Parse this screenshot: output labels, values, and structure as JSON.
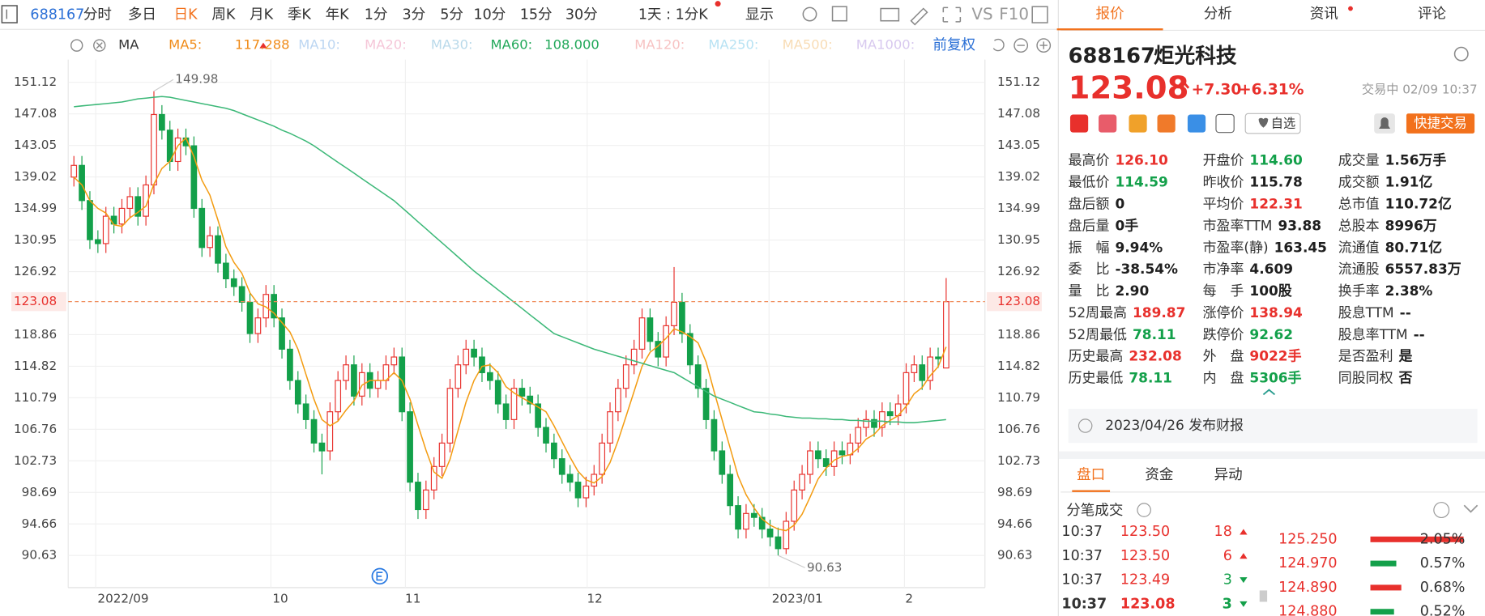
{
  "toolbar": {
    "code": "688167",
    "periods": [
      "分时",
      "多日",
      "日K",
      "周K",
      "月K",
      "季K",
      "年K",
      "1分",
      "3分",
      "5分",
      "10分",
      "15分",
      "30分"
    ],
    "active": 2,
    "range": "1天 : 1分K",
    "display": "显示",
    "vs": "VS",
    "f10": "F10"
  },
  "chart_data": {
    "type": "candlestick",
    "indicator": "MA",
    "adjust": "前复权",
    "ma_legend": [
      {
        "name": "MA5:",
        "value": "117.288",
        "color": "#f08c1a"
      },
      {
        "name": "MA10:",
        "color": "#bcd6f2"
      },
      {
        "name": "MA20:",
        "color": "#f5c6d8"
      },
      {
        "name": "MA30:",
        "color": "#b9d9ea"
      },
      {
        "name": "MA60:",
        "value": "108.000",
        "color": "#22a85a"
      },
      {
        "name": "MA120:",
        "color": "#f7c3c3"
      },
      {
        "name": "MA250:",
        "color": "#b7e2f3"
      },
      {
        "name": "MA500:",
        "color": "#f8dcb5"
      },
      {
        "name": "MA1000:",
        "color": "#d8c9ef"
      }
    ],
    "x_labels": [
      "2022/09",
      "10",
      "11",
      "12",
      "2023/01",
      "2"
    ],
    "open": [
      139,
      140.5,
      136,
      131,
      130.5,
      134,
      133,
      135,
      136.5,
      134,
      138,
      147,
      145,
      141,
      144,
      143,
      135,
      130,
      131.5,
      128,
      126,
      125,
      123,
      119,
      121,
      124,
      121,
      117,
      113,
      110,
      108,
      105,
      104,
      109,
      113,
      115,
      111,
      114,
      112,
      113,
      115,
      116,
      109,
      100,
      96.5,
      99,
      102,
      105,
      112,
      115,
      117,
      116,
      114,
      113,
      110,
      108,
      112,
      111,
      110,
      107,
      105,
      103,
      101,
      100,
      98,
      99.5,
      101,
      105,
      109,
      112,
      115,
      117,
      121,
      118,
      116,
      120,
      123,
      119,
      115,
      112,
      108,
      104,
      101,
      97,
      94,
      96,
      95.5,
      94,
      93,
      91.5,
      95,
      99,
      101,
      104,
      103,
      102,
      104,
      103.5,
      105,
      107,
      108,
      107,
      109,
      108.5,
      110,
      114,
      115,
      113,
      116,
      114.6
    ],
    "high": [
      141.7,
      141.7,
      137.2,
      132.2,
      135.2,
      135.2,
      136.2,
      137.7,
      137.7,
      139.2,
      149.98,
      148.2,
      146.2,
      145.2,
      145.2,
      144.2,
      136.2,
      132.7,
      132.7,
      129.2,
      127.2,
      126.2,
      124.2,
      122.2,
      125.2,
      125.2,
      122.2,
      118.2,
      114.2,
      111.2,
      109.2,
      106.2,
      110.2,
      114.2,
      116.2,
      116.2,
      115.2,
      115.2,
      114.2,
      116.2,
      117.2,
      117.2,
      110.2,
      101.2,
      100.2,
      103.2,
      106.2,
      113.2,
      116.2,
      118.2,
      118.2,
      117.2,
      115.2,
      114.2,
      111.2,
      113.2,
      113.2,
      112.2,
      111.2,
      108.2,
      106.2,
      104.2,
      102.2,
      101.2,
      100.7,
      102.2,
      106.2,
      110.2,
      113.2,
      116.2,
      118.2,
      122.2,
      122.2,
      119.2,
      121.2,
      127.5,
      124.2,
      120.2,
      116.2,
      113.2,
      109.2,
      105.2,
      102.2,
      98.2,
      97.2,
      97.2,
      96.7,
      95.2,
      94.2,
      96.2,
      100.2,
      102.2,
      105.2,
      105.2,
      104.2,
      105.2,
      105.2,
      106.2,
      108.2,
      109.2,
      109.2,
      110.2,
      110.2,
      111.2,
      115.2,
      116.2,
      116.2,
      117.2,
      117.2,
      126.1
    ],
    "low": [
      137.8,
      134.8,
      129.8,
      129.3,
      129.3,
      131.8,
      131.8,
      133.8,
      132.8,
      132.8,
      136.8,
      143.8,
      139.8,
      139.8,
      141.8,
      133.8,
      128.8,
      128.8,
      126.8,
      124.8,
      123.8,
      121.8,
      117.8,
      117.8,
      119.8,
      119.8,
      115.8,
      111.8,
      108.8,
      106.8,
      103.8,
      101,
      102.8,
      107.8,
      111.8,
      109.8,
      109.8,
      110.8,
      110.8,
      111.8,
      113.8,
      107.8,
      98.8,
      95.3,
      95.3,
      97.8,
      100.8,
      103.8,
      110.8,
      113.8,
      114.8,
      112.8,
      111.8,
      108.8,
      106.8,
      106.8,
      109.8,
      108.8,
      105.8,
      103.8,
      101.8,
      99.8,
      98.8,
      96.8,
      96.8,
      98.3,
      99.8,
      103.8,
      107.8,
      110.8,
      113.8,
      115.8,
      116.8,
      114.8,
      114.8,
      118.8,
      117.8,
      113.8,
      110.8,
      106.8,
      102.8,
      99.8,
      95.8,
      92.8,
      92.8,
      94.3,
      92.8,
      91.8,
      90.63,
      90.8,
      93.8,
      97.8,
      99.8,
      101.8,
      100.8,
      100.8,
      102.3,
      102.3,
      103.8,
      105.8,
      105.8,
      105.8,
      107.3,
      107.3,
      108.8,
      112.8,
      111.8,
      111.8,
      114.6,
      114.59
    ],
    "close": [
      140.5,
      136,
      131,
      130.5,
      134,
      133,
      135,
      136.5,
      134,
      138,
      147,
      145,
      141,
      144,
      143,
      135,
      130,
      131.5,
      128,
      126,
      125,
      123,
      119,
      121,
      124,
      121,
      117,
      113,
      110,
      108,
      105,
      104,
      109,
      113,
      115,
      111,
      114,
      112,
      113,
      115,
      116,
      109,
      100,
      96.5,
      99,
      102,
      105,
      112,
      115,
      117,
      116,
      114,
      113,
      110,
      108,
      112,
      111,
      110,
      107,
      105,
      103,
      101,
      100,
      98,
      99.5,
      101,
      105,
      109,
      112,
      115,
      117,
      121,
      118,
      116,
      120,
      123,
      119,
      115,
      112,
      108,
      104,
      101,
      97,
      94,
      96,
      95.5,
      94,
      93,
      91.5,
      95,
      99,
      101,
      104,
      103,
      102,
      104,
      103.5,
      105,
      107,
      108,
      107,
      109,
      108.5,
      110,
      114,
      115,
      113,
      116,
      115.78,
      123.08
    ],
    "lines": [
      {
        "color": "#f39c12",
        "values": [
          139,
          138,
          136,
          135,
          134.4,
          132.9,
          132.7,
          133.8,
          134.5,
          135.3,
          138.1,
          140.1,
          141,
          143,
          144,
          141.6,
          138.6,
          136.7,
          133.5,
          130.1,
          128.1,
          126.7,
          124.2,
          122.8,
          122.4,
          121.6,
          120.4,
          119.2,
          117,
          113.8,
          110.6,
          108,
          107.2,
          107.8,
          109.2,
          110.4,
          112.4,
          113,
          113,
          113,
          114,
          113,
          110.6,
          107.3,
          104.1,
          101.3,
          100.5,
          102.9,
          106.6,
          110.2,
          113,
          114.8,
          115,
          114,
          112.2,
          111.4,
          110.8,
          110.2,
          109.6,
          109,
          107.2,
          105.2,
          103.2,
          101.4,
          100.3,
          99.9,
          100.7,
          102.5,
          105.3,
          108.4,
          111.6,
          114.8,
          116.6,
          117.4,
          118.4,
          119.6,
          119.2,
          118.6,
          117.8,
          115.4,
          111.6,
          108,
          104.4,
          100.8,
          98.4,
          96.7,
          95.3,
          94.5,
          94,
          93.8,
          94.5,
          95.9,
          98.1,
          100.4,
          101.8,
          102.8,
          103.3,
          103.5,
          104.3,
          105.5,
          106.1,
          107.2,
          107.9,
          108.5,
          109.7,
          111.3,
          112.1,
          113.6,
          114.76,
          117.29
        ]
      },
      {
        "color": "#3cb878",
        "values": [
          148,
          148.1,
          148.2,
          148.3,
          148.4,
          148.5,
          148.6,
          148.8,
          149,
          149.1,
          149.2,
          149.3,
          149.2,
          149,
          148.8,
          148.6,
          148.4,
          148.2,
          148,
          147.8,
          147.5,
          147.1,
          146.7,
          146.3,
          145.9,
          145.5,
          145,
          144.6,
          144.1,
          143.6,
          143,
          142.3,
          141.6,
          140.9,
          140.2,
          139.5,
          138.8,
          138.1,
          137.4,
          136.7,
          136,
          135.1,
          134.2,
          133.3,
          132.4,
          131.5,
          130.6,
          129.7,
          128.8,
          127.9,
          127,
          126.2,
          125.4,
          124.6,
          123.8,
          123,
          122.2,
          121.4,
          120.6,
          119.8,
          119,
          118.6,
          118.2,
          117.8,
          117.4,
          117,
          116.7,
          116.4,
          116.1,
          115.8,
          115.5,
          115.2,
          114.9,
          114.6,
          114.3,
          114,
          113.4,
          112.8,
          112.2,
          111.6,
          111,
          110.6,
          110.2,
          109.8,
          109.4,
          109,
          108.9,
          108.7,
          108.6,
          108.4,
          108.3,
          108.2,
          108.2,
          108.1,
          108.1,
          108,
          108,
          107.9,
          107.9,
          107.8,
          107.8,
          107.8,
          107.7,
          107.7,
          107.6,
          107.6,
          107.7,
          107.8,
          107.9,
          108
        ]
      }
    ],
    "up_color": "#e8302c",
    "down_color": "#13a04a",
    "ylim": [
      86.52,
      154.02
    ],
    "yticks": [
      151.12,
      147.08,
      143.05,
      139.02,
      134.99,
      130.95,
      126.92,
      118.86,
      114.82,
      110.79,
      106.76,
      102.73,
      98.69,
      94.66,
      90.63
    ],
    "grid": true
  },
  "panel": {
    "tabs": [
      "报价",
      "分析",
      "资讯",
      "评论"
    ],
    "active_tab": 0,
    "code": "688167",
    "name": "炬光科技",
    "price": "123.08",
    "change": "+7.30",
    "change_pct": "+6.31%",
    "status": "交易中 02/09 10:37",
    "watch": "自选",
    "quick_trade": "快捷交易",
    "stats": [
      {
        "label": "最高价",
        "value": "126.10",
        "color": "#e8302c"
      },
      {
        "label": "开盘价",
        "value": "114.60",
        "color": "#13a04a"
      },
      {
        "label": "成交量",
        "value": "1.56万手",
        "color": "#1f1f1f"
      },
      {
        "label": "最低价",
        "value": "114.59",
        "color": "#13a04a"
      },
      {
        "label": "昨收价",
        "value": "115.78",
        "color": "#1f1f1f"
      },
      {
        "label": "成交额",
        "value": "1.91亿",
        "color": "#1f1f1f"
      },
      {
        "label": "盘后额",
        "value": "0",
        "color": "#1f1f1f"
      },
      {
        "label": "平均价",
        "value": "122.31",
        "color": "#e8302c"
      },
      {
        "label": "总市值",
        "value": "110.72亿",
        "color": "#1f1f1f"
      },
      {
        "label": "盘后量",
        "value": "0手",
        "color": "#1f1f1f"
      },
      {
        "label": "市盈率TTM",
        "value": "93.88",
        "color": "#1f1f1f"
      },
      {
        "label": "总股本",
        "value": "8996万",
        "color": "#1f1f1f"
      },
      {
        "label": "振　幅",
        "value": "9.94%",
        "color": "#1f1f1f"
      },
      {
        "label": "市盈率(静)",
        "value": "163.45",
        "color": "#1f1f1f"
      },
      {
        "label": "流通值",
        "value": "80.71亿",
        "color": "#1f1f1f"
      },
      {
        "label": "委　比",
        "value": "-38.54%",
        "color": "#1f1f1f"
      },
      {
        "label": "市净率",
        "value": "4.609",
        "color": "#1f1f1f"
      },
      {
        "label": "流通股",
        "value": "6557.83万",
        "color": "#1f1f1f"
      },
      {
        "label": "量　比",
        "value": "2.90",
        "color": "#1f1f1f"
      },
      {
        "label": "每　手",
        "value": "100股",
        "color": "#1f1f1f"
      },
      {
        "label": "换手率",
        "value": "2.38%",
        "color": "#1f1f1f"
      },
      {
        "label": "52周最高",
        "value": "189.87",
        "color": "#e8302c"
      },
      {
        "label": "涨停价",
        "value": "138.94",
        "color": "#e8302c"
      },
      {
        "label": "股息TTM",
        "value": "--",
        "color": "#1f1f1f"
      },
      {
        "label": "52周最低",
        "value": "78.11",
        "color": "#13a04a"
      },
      {
        "label": "跌停价",
        "value": "92.62",
        "color": "#13a04a"
      },
      {
        "label": "股息率TTM",
        "value": "--",
        "color": "#1f1f1f"
      },
      {
        "label": "历史最高",
        "value": "232.08",
        "color": "#e8302c"
      },
      {
        "label": "外　盘",
        "value": "9022手",
        "color": "#e8302c"
      },
      {
        "label": "是否盈利",
        "value": "是",
        "color": "#1f1f1f"
      },
      {
        "label": "历史最低",
        "value": "78.11",
        "color": "#13a04a"
      },
      {
        "label": "内　盘",
        "value": "5306手",
        "color": "#13a04a"
      },
      {
        "label": "同股同权",
        "value": "否",
        "color": "#1f1f1f"
      }
    ],
    "report": "2023/04/26  发布财报",
    "subtabs": [
      "盘口",
      "资金",
      "异动"
    ],
    "active_subtab": 0,
    "ticks_title": "分笔成交",
    "trades": [
      {
        "time": "10:37",
        "price": "123.50",
        "volume": "18",
        "dir": "up"
      },
      {
        "time": "10:37",
        "price": "123.50",
        "volume": "6",
        "dir": "up"
      },
      {
        "time": "10:37",
        "price": "123.49",
        "volume": "3",
        "dir": "down"
      },
      {
        "time": "10:37",
        "price": "123.08",
        "volume": "3",
        "dir": "down"
      }
    ],
    "book": {
      "prices": [
        "125.250",
        "124.970",
        "124.890",
        "124.880"
      ],
      "values": [
        2.05,
        0.57,
        0.68,
        0.52
      ],
      "value_labels": [
        "2.05%",
        "0.57%",
        "0.68%",
        "0.52%"
      ],
      "colors": [
        "#e8302c",
        "#13a04a",
        "#e8302c",
        "#13a04a"
      ]
    }
  }
}
